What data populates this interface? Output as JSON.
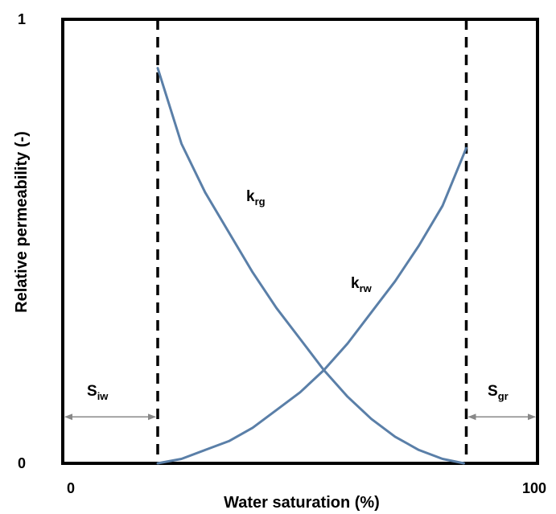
{
  "chart_data": {
    "type": "line",
    "xlabel": "Water saturation (%)",
    "ylabel": "Relative permeability (-)",
    "xlim": [
      0,
      100
    ],
    "ylim": [
      0,
      1
    ],
    "xticks": [
      "0",
      "100"
    ],
    "yticks": [
      "1",
      "0"
    ],
    "grid": false,
    "legend": "none",
    "colors": {
      "curve": "#5a7fa8",
      "axis": "#000000",
      "arrow": "#888888"
    },
    "series": [
      {
        "name": "krg",
        "label_main": "k",
        "label_sub": "rg",
        "x": [
          20,
          25,
          30,
          35,
          40,
          45,
          50,
          55,
          60,
          65,
          70,
          75,
          80,
          84.5
        ],
        "y": [
          0.89,
          0.72,
          0.61,
          0.52,
          0.43,
          0.35,
          0.28,
          0.21,
          0.15,
          0.1,
          0.06,
          0.03,
          0.01,
          0.0
        ]
      },
      {
        "name": "krw",
        "label_main": "k",
        "label_sub": "rw",
        "x": [
          20,
          25,
          30,
          35,
          40,
          45,
          50,
          55,
          60,
          65,
          70,
          75,
          80,
          85
        ],
        "y": [
          0.0,
          0.01,
          0.03,
          0.05,
          0.08,
          0.12,
          0.16,
          0.21,
          0.27,
          0.34,
          0.41,
          0.49,
          0.58,
          0.71
        ]
      }
    ],
    "vlines": [
      {
        "name": "Siw",
        "x": 20,
        "style": "dashed"
      },
      {
        "name": "Sgr",
        "x": 85,
        "style": "dashed"
      }
    ],
    "annotations": [
      {
        "name": "Siw",
        "main": "S",
        "sub": "iw",
        "from_x": 0,
        "to_x": 20,
        "y": 0.11
      },
      {
        "name": "Sgr",
        "main": "S",
        "sub": "gr",
        "from_x": 85,
        "to_x": 100,
        "y": 0.11
      }
    ]
  }
}
